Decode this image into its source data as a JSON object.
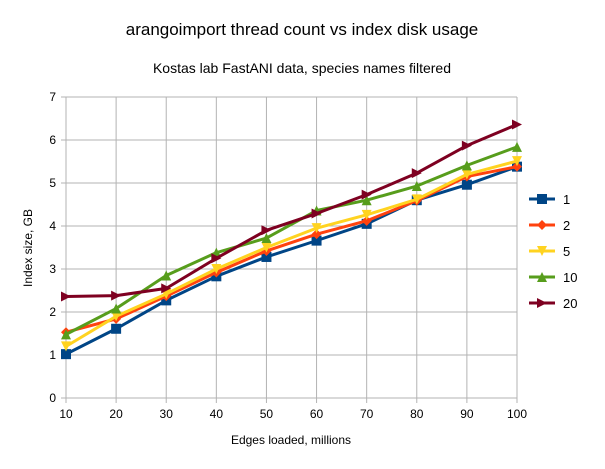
{
  "chart_data": {
    "type": "line",
    "title": "arangoimport thread count vs  index disk usage",
    "subtitle": "Kostas lab FastANI data, species names filtered",
    "xlabel": "Edges loaded, millions",
    "ylabel": "Index size, GB",
    "x": [
      10,
      20,
      30,
      40,
      50,
      60,
      70,
      80,
      90,
      100
    ],
    "xlim": [
      10,
      100
    ],
    "ylim": [
      0,
      7
    ],
    "yticks": [
      0,
      1,
      2,
      3,
      4,
      5,
      6,
      7
    ],
    "grid": true,
    "legend_position": "right",
    "series": [
      {
        "name": "1",
        "color": "#004586",
        "marker": "square",
        "values": [
          1.02,
          1.61,
          2.27,
          2.83,
          3.28,
          3.66,
          4.05,
          4.6,
          4.96,
          5.38
        ]
      },
      {
        "name": "2",
        "color": "#ff420e",
        "marker": "diamond",
        "values": [
          1.53,
          1.84,
          2.37,
          2.92,
          3.42,
          3.81,
          4.12,
          4.59,
          5.15,
          5.38
        ]
      },
      {
        "name": "5",
        "color": "#ffd320",
        "marker": "triangle-down",
        "values": [
          1.2,
          1.9,
          2.42,
          3.0,
          3.5,
          3.95,
          4.26,
          4.62,
          5.2,
          5.51
        ]
      },
      {
        "name": "10",
        "color": "#579d1c",
        "marker": "triangle-up",
        "values": [
          1.48,
          2.08,
          2.85,
          3.38,
          3.72,
          4.36,
          4.6,
          4.93,
          5.41,
          5.84
        ]
      },
      {
        "name": "20",
        "color": "#7e0021",
        "marker": "triangle-right",
        "values": [
          2.36,
          2.38,
          2.55,
          3.25,
          3.9,
          4.29,
          4.73,
          5.23,
          5.87,
          6.36
        ]
      }
    ]
  }
}
